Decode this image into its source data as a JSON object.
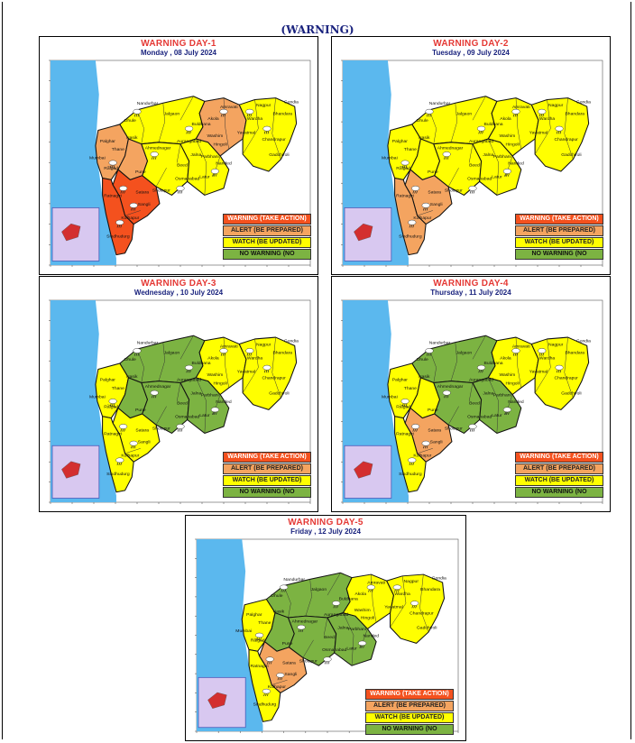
{
  "page_title": "(WARNING)",
  "colors": {
    "warning": "#f4511e",
    "alert": "#f4a460",
    "watch": "#ffff00",
    "no_warning": "#7cb342",
    "sea": "#5bb8ee",
    "inset": "#d8c8f0"
  },
  "legend": {
    "warning": "WARNING (TAKE ACTION)",
    "alert": "ALERT (BE PREPARED)",
    "watch": "WATCH (BE UPDATED)",
    "no_warning": "NO WARNING (NO"
  },
  "panels": [
    {
      "title": "WARNING  DAY-1",
      "date": "Monday ,  08 July 2024",
      "zones": {
        "north_konkan": "alert",
        "south_konkan": "warning",
        "ghat_south": "warning",
        "ghat_north": "alert",
        "north_maha": "watch",
        "marathwada": "watch",
        "west_vidarbha": "alert",
        "east_vidarbha": "watch",
        "central": "watch"
      }
    },
    {
      "title": "WARNING  DAY-2",
      "date": "Tuesday ,  09 July 2024",
      "zones": {
        "north_konkan": "watch",
        "south_konkan": "alert",
        "ghat_south": "alert",
        "ghat_north": "watch",
        "north_maha": "watch",
        "marathwada": "watch",
        "west_vidarbha": "watch",
        "east_vidarbha": "watch",
        "central": "watch"
      }
    },
    {
      "title": "WARNING  DAY-3",
      "date": "Wednesday ,  10 July 2024",
      "zones": {
        "north_konkan": "watch",
        "south_konkan": "watch",
        "ghat_south": "watch",
        "ghat_north": "no_warning",
        "north_maha": "no_warning",
        "marathwada": "no_warning",
        "west_vidarbha": "watch",
        "east_vidarbha": "watch",
        "central": "no_warning"
      }
    },
    {
      "title": "WARNING  DAY-4",
      "date": "Thursday ,  11 July 2024",
      "zones": {
        "north_konkan": "watch",
        "south_konkan": "watch",
        "ghat_south": "alert",
        "ghat_north": "watch",
        "north_maha": "no_warning",
        "marathwada": "no_warning",
        "west_vidarbha": "watch",
        "east_vidarbha": "watch",
        "central": "no_warning"
      }
    },
    {
      "title": "WARNING  DAY-5",
      "date": "Friday ,  12 July 2024",
      "zones": {
        "north_konkan": "watch",
        "south_konkan": "watch",
        "ghat_south": "alert",
        "ghat_north": "no_warning",
        "north_maha": "no_warning",
        "marathwada": "no_warning",
        "west_vidarbha": "watch",
        "east_vidarbha": "watch",
        "central": "no_warning"
      }
    }
  ],
  "district_labels": [
    "Nandurbar",
    "Dhule",
    "Jalgaon",
    "Nasik",
    "Palghar",
    "Thane",
    "Mumbai",
    "Raigad",
    "Pune",
    "Satara",
    "Ratnagiri",
    "Sindhudurg",
    "Kolhapur",
    "Sangli",
    "Sholapur",
    "Ahmednagar",
    "Aurangabad",
    "Jalna",
    "Beed",
    "Latur",
    "Osmanabad",
    "Nanded",
    "Parbhani",
    "Hingoli",
    "Buldhana",
    "Akola",
    "Washim",
    "Amravati",
    "Yavatmal",
    "Wardha",
    "Nagpur",
    "Bhandara",
    "Gondia",
    "Chandrapur",
    "Gadchiroli"
  ]
}
